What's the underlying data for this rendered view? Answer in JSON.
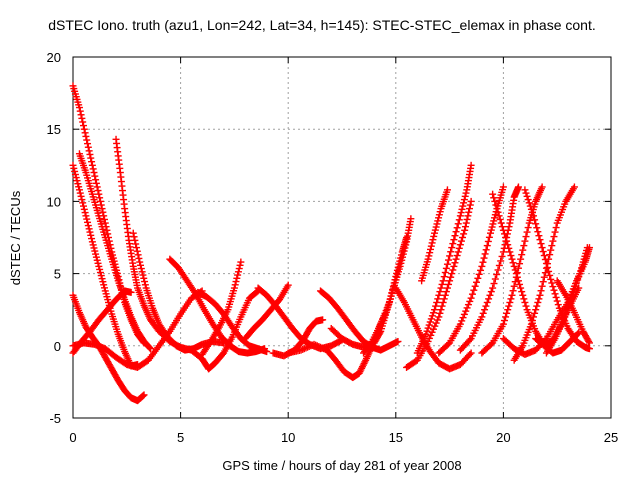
{
  "chart_data": {
    "type": "scatter",
    "title": "dSTEC Iono. truth (azu1, Lon=242, Lat=34, h=145): STEC-STEC_elemax in phase cont.",
    "xlabel": "GPS time / hours of day 281 of year 2008",
    "ylabel": "dSTEC  / TECUs",
    "xlim": [
      0,
      25
    ],
    "ylim": [
      -5,
      20
    ],
    "xticks": [
      0,
      5,
      10,
      15,
      20,
      25
    ],
    "yticks": [
      -5,
      0,
      5,
      10,
      15,
      20
    ],
    "grid": true,
    "marker": "+",
    "color": "#ff0000",
    "series": [
      {
        "points": [
          [
            0.0,
            18.0
          ],
          [
            0.3,
            16.5
          ],
          [
            0.6,
            14.5
          ],
          [
            0.9,
            12.5
          ],
          [
            1.2,
            10.5
          ],
          [
            1.5,
            8.5
          ],
          [
            1.8,
            6.5
          ],
          [
            2.1,
            4.8
          ],
          [
            2.4,
            3.0
          ],
          [
            2.7,
            1.8
          ],
          [
            3.0,
            0.8
          ],
          [
            3.3,
            0.2
          ]
        ]
      },
      {
        "points": [
          [
            0.0,
            12.5
          ],
          [
            0.3,
            10.8
          ],
          [
            0.6,
            9.0
          ],
          [
            0.9,
            7.2
          ],
          [
            1.2,
            5.5
          ],
          [
            1.5,
            3.8
          ],
          [
            1.8,
            2.2
          ],
          [
            2.1,
            0.8
          ],
          [
            2.4,
            -0.4
          ],
          [
            2.7,
            -1.4
          ],
          [
            3.0,
            -1.3
          ]
        ]
      },
      {
        "points": [
          [
            0.3,
            13.3
          ],
          [
            0.6,
            12.0
          ],
          [
            0.9,
            10.5
          ],
          [
            1.2,
            9.0
          ],
          [
            1.5,
            7.5
          ],
          [
            1.8,
            6.0
          ],
          [
            2.1,
            4.5
          ],
          [
            2.4,
            3.2
          ],
          [
            2.7,
            2.0
          ],
          [
            3.0,
            1.0
          ],
          [
            3.3,
            0.3
          ],
          [
            3.6,
            -0.2
          ]
        ]
      },
      {
        "points": [
          [
            2.0,
            14.3
          ],
          [
            2.2,
            12.0
          ],
          [
            2.4,
            9.5
          ],
          [
            2.6,
            7.3
          ],
          [
            2.8,
            5.5
          ],
          [
            3.0,
            4.0
          ],
          [
            3.3,
            2.8
          ],
          [
            3.6,
            1.8
          ],
          [
            4.0,
            1.0
          ],
          [
            4.5,
            0.3
          ],
          [
            5.0,
            -0.1
          ],
          [
            5.5,
            -0.3
          ]
        ]
      },
      {
        "points": [
          [
            0.0,
            3.5
          ],
          [
            0.3,
            2.3
          ],
          [
            0.6,
            1.3
          ],
          [
            0.9,
            0.6
          ],
          [
            1.2,
            0.0
          ],
          [
            1.5,
            -0.8
          ],
          [
            1.8,
            -1.6
          ],
          [
            2.1,
            -2.4
          ],
          [
            2.4,
            -3.1
          ],
          [
            2.7,
            -3.6
          ],
          [
            3.0,
            -3.8
          ],
          [
            3.3,
            -3.4
          ]
        ]
      },
      {
        "points": [
          [
            0.0,
            -0.5
          ],
          [
            0.4,
            0.3
          ],
          [
            0.8,
            1.0
          ],
          [
            1.2,
            1.8
          ],
          [
            1.6,
            2.5
          ],
          [
            2.0,
            3.2
          ],
          [
            2.4,
            3.8
          ],
          [
            2.7,
            3.7
          ]
        ]
      },
      {
        "points": [
          [
            0.0,
            0.0
          ],
          [
            0.5,
            0.2
          ],
          [
            1.0,
            0.1
          ],
          [
            1.5,
            -0.2
          ],
          [
            2.0,
            -0.8
          ],
          [
            2.5,
            -1.3
          ],
          [
            3.0,
            -1.5
          ],
          [
            3.5,
            -1.0
          ],
          [
            4.0,
            0.0
          ],
          [
            4.5,
            1.0
          ],
          [
            5.0,
            2.2
          ],
          [
            5.5,
            3.3
          ],
          [
            6.0,
            3.8
          ]
        ]
      },
      {
        "points": [
          [
            2.8,
            7.8
          ],
          [
            3.1,
            5.8
          ],
          [
            3.4,
            4.0
          ],
          [
            3.7,
            2.6
          ],
          [
            4.0,
            1.5
          ],
          [
            4.4,
            0.6
          ],
          [
            4.8,
            0.0
          ],
          [
            5.2,
            -0.3
          ],
          [
            5.6,
            -0.2
          ],
          [
            6.0,
            0.1
          ],
          [
            6.5,
            0.3
          ],
          [
            7.0,
            0.2
          ]
        ]
      },
      {
        "points": [
          [
            4.5,
            6.0
          ],
          [
            4.9,
            5.4
          ],
          [
            5.3,
            4.5
          ],
          [
            5.7,
            3.6
          ],
          [
            6.1,
            2.5
          ],
          [
            6.5,
            1.5
          ],
          [
            6.9,
            0.6
          ],
          [
            7.3,
            0.0
          ],
          [
            7.7,
            -0.4
          ],
          [
            8.1,
            -0.5
          ],
          [
            8.5,
            -0.4
          ],
          [
            8.9,
            -0.2
          ]
        ]
      },
      {
        "points": [
          [
            5.5,
            -0.3
          ],
          [
            6.0,
            -0.9
          ],
          [
            6.3,
            -1.6
          ],
          [
            6.6,
            -1.2
          ],
          [
            7.0,
            -0.5
          ],
          [
            7.4,
            0.6
          ],
          [
            7.8,
            2.0
          ],
          [
            8.2,
            3.3
          ],
          [
            8.6,
            3.8
          ]
        ]
      },
      {
        "points": [
          [
            6.0,
            -0.6
          ],
          [
            6.4,
            0.3
          ],
          [
            6.8,
            1.3
          ],
          [
            7.2,
            2.5
          ],
          [
            7.5,
            4.0
          ],
          [
            7.8,
            5.8
          ]
        ]
      },
      {
        "points": [
          [
            5.8,
            3.7
          ],
          [
            6.2,
            3.4
          ],
          [
            6.6,
            2.9
          ],
          [
            7.0,
            2.2
          ],
          [
            7.4,
            1.3
          ],
          [
            7.8,
            0.5
          ],
          [
            8.2,
            0.0
          ],
          [
            8.6,
            -0.2
          ],
          [
            9.0,
            -0.4
          ]
        ]
      },
      {
        "points": [
          [
            8.6,
            4.0
          ],
          [
            9.0,
            3.5
          ],
          [
            9.4,
            2.8
          ],
          [
            9.8,
            2.0
          ],
          [
            10.2,
            1.2
          ],
          [
            10.6,
            0.5
          ],
          [
            11.0,
            0.1
          ],
          [
            11.5,
            -0.2
          ],
          [
            12.0,
            0.0
          ],
          [
            12.5,
            0.4
          ]
        ]
      },
      {
        "points": [
          [
            8.0,
            0.5
          ],
          [
            8.4,
            1.2
          ],
          [
            8.8,
            1.8
          ],
          [
            9.2,
            2.5
          ],
          [
            9.6,
            3.2
          ],
          [
            10.0,
            4.2
          ]
        ]
      },
      {
        "points": [
          [
            9.3,
            -0.5
          ],
          [
            9.8,
            -0.7
          ],
          [
            10.3,
            -0.3
          ],
          [
            10.7,
            0.4
          ],
          [
            11.0,
            1.2
          ],
          [
            11.3,
            1.7
          ],
          [
            11.6,
            1.8
          ]
        ]
      },
      {
        "points": [
          [
            11.5,
            3.8
          ],
          [
            11.9,
            3.3
          ],
          [
            12.3,
            2.6
          ],
          [
            12.7,
            1.8
          ],
          [
            13.1,
            1.0
          ],
          [
            13.5,
            0.3
          ],
          [
            13.9,
            -0.1
          ],
          [
            14.3,
            -0.3
          ],
          [
            14.7,
            0.0
          ],
          [
            15.1,
            0.3
          ]
        ]
      },
      {
        "points": [
          [
            10.0,
            -0.5
          ],
          [
            10.6,
            -0.3
          ],
          [
            11.2,
            0.1
          ],
          [
            11.8,
            -0.3
          ],
          [
            12.2,
            -1.0
          ],
          [
            12.6,
            -1.8
          ],
          [
            13.0,
            -2.2
          ],
          [
            13.3,
            -1.9
          ],
          [
            13.6,
            -1.0
          ],
          [
            13.9,
            0.0
          ],
          [
            14.2,
            1.2
          ],
          [
            14.5,
            2.2
          ]
        ]
      },
      {
        "points": [
          [
            12.0,
            1.2
          ],
          [
            12.5,
            0.5
          ],
          [
            13.0,
            0.1
          ],
          [
            13.5,
            -0.1
          ],
          [
            14.0,
            0.2
          ],
          [
            14.3,
            1.0
          ],
          [
            14.6,
            2.5
          ],
          [
            14.9,
            4.0
          ],
          [
            15.2,
            5.5
          ],
          [
            15.5,
            7.2
          ],
          [
            15.7,
            8.8
          ]
        ]
      },
      {
        "points": [
          [
            13.5,
            -0.5
          ],
          [
            13.9,
            0.3
          ],
          [
            14.3,
            1.5
          ],
          [
            14.7,
            3.0
          ],
          [
            15.0,
            4.8
          ],
          [
            15.3,
            6.5
          ],
          [
            15.5,
            7.5
          ]
        ]
      },
      {
        "points": [
          [
            15.0,
            4.0
          ],
          [
            15.4,
            3.0
          ],
          [
            15.8,
            1.8
          ],
          [
            16.2,
            0.6
          ],
          [
            16.6,
            -0.4
          ],
          [
            17.0,
            -1.2
          ],
          [
            17.5,
            -1.6
          ],
          [
            18.0,
            -1.3
          ],
          [
            18.5,
            -0.5
          ]
        ]
      },
      {
        "points": [
          [
            15.5,
            -1.5
          ],
          [
            16.0,
            -1.0
          ],
          [
            16.5,
            0.3
          ],
          [
            17.0,
            2.0
          ],
          [
            17.4,
            4.0
          ],
          [
            17.8,
            6.0
          ],
          [
            18.2,
            8.0
          ],
          [
            18.5,
            10.0
          ]
        ]
      },
      {
        "points": [
          [
            16.0,
            -0.5
          ],
          [
            16.4,
            0.8
          ],
          [
            16.8,
            2.5
          ],
          [
            17.2,
            4.5
          ],
          [
            17.6,
            6.8
          ],
          [
            18.0,
            9.0
          ],
          [
            18.3,
            10.8
          ],
          [
            18.5,
            12.5
          ]
        ]
      },
      {
        "points": [
          [
            16.2,
            4.5
          ],
          [
            16.5,
            6.0
          ],
          [
            16.8,
            7.8
          ],
          [
            17.1,
            9.5
          ],
          [
            17.4,
            10.8
          ]
        ]
      },
      {
        "points": [
          [
            17.0,
            -0.5
          ],
          [
            17.5,
            0.2
          ],
          [
            18.0,
            1.5
          ],
          [
            18.5,
            3.3
          ],
          [
            19.0,
            5.5
          ],
          [
            19.4,
            7.8
          ],
          [
            19.7,
            9.5
          ],
          [
            20.0,
            11.0
          ]
        ]
      },
      {
        "points": [
          [
            18.0,
            -0.3
          ],
          [
            18.5,
            0.5
          ],
          [
            19.0,
            2.0
          ],
          [
            19.5,
            4.0
          ],
          [
            20.0,
            6.5
          ],
          [
            20.3,
            8.5
          ],
          [
            20.5,
            10.3
          ],
          [
            20.7,
            11.0
          ]
        ]
      },
      {
        "points": [
          [
            19.0,
            -0.5
          ],
          [
            19.5,
            0.2
          ],
          [
            20.0,
            1.5
          ],
          [
            20.4,
            3.5
          ],
          [
            20.8,
            6.0
          ],
          [
            21.2,
            8.5
          ],
          [
            21.5,
            10.0
          ],
          [
            21.8,
            11.0
          ]
        ]
      },
      {
        "points": [
          [
            20.5,
            -1.0
          ],
          [
            20.9,
            0.0
          ],
          [
            21.3,
            1.5
          ],
          [
            21.7,
            3.5
          ],
          [
            22.1,
            6.0
          ],
          [
            22.5,
            8.5
          ],
          [
            22.9,
            10.0
          ],
          [
            23.3,
            11.0
          ]
        ]
      },
      {
        "points": [
          [
            19.5,
            10.5
          ],
          [
            19.9,
            8.5
          ],
          [
            20.3,
            6.5
          ],
          [
            20.7,
            4.5
          ],
          [
            21.1,
            2.5
          ],
          [
            21.5,
            1.0
          ],
          [
            21.9,
            0.0
          ],
          [
            22.3,
            -0.5
          ],
          [
            22.7,
            -0.3
          ],
          [
            23.1,
            0.3
          ],
          [
            23.5,
            0.9
          ]
        ]
      },
      {
        "points": [
          [
            21.0,
            10.8
          ],
          [
            21.4,
            9.0
          ],
          [
            21.8,
            6.8
          ],
          [
            22.2,
            4.6
          ],
          [
            22.6,
            2.6
          ],
          [
            23.0,
            1.2
          ],
          [
            23.4,
            0.3
          ],
          [
            23.8,
            -0.1
          ],
          [
            24.0,
            -0.2
          ]
        ]
      },
      {
        "points": [
          [
            22.0,
            -0.5
          ],
          [
            22.4,
            0.5
          ],
          [
            22.8,
            1.8
          ],
          [
            23.2,
            3.5
          ],
          [
            23.6,
            5.2
          ],
          [
            23.9,
            6.8
          ]
        ]
      },
      {
        "points": [
          [
            21.5,
            0.5
          ],
          [
            21.9,
            0.0
          ],
          [
            22.3,
            0.4
          ],
          [
            22.7,
            1.5
          ],
          [
            23.1,
            2.8
          ],
          [
            23.5,
            4.0
          ]
        ]
      },
      {
        "points": [
          [
            22.5,
            4.5
          ],
          [
            22.9,
            3.5
          ],
          [
            23.3,
            2.3
          ],
          [
            23.7,
            1.0
          ],
          [
            24.0,
            0.2
          ]
        ]
      },
      {
        "points": [
          [
            20.0,
            0.5
          ],
          [
            20.5,
            -0.2
          ],
          [
            21.0,
            -0.6
          ],
          [
            21.5,
            -0.3
          ],
          [
            22.0,
            0.5
          ],
          [
            22.5,
            1.8
          ],
          [
            23.0,
            3.0
          ],
          [
            23.4,
            4.5
          ],
          [
            23.8,
            5.8
          ],
          [
            24.0,
            6.8
          ]
        ]
      }
    ]
  }
}
